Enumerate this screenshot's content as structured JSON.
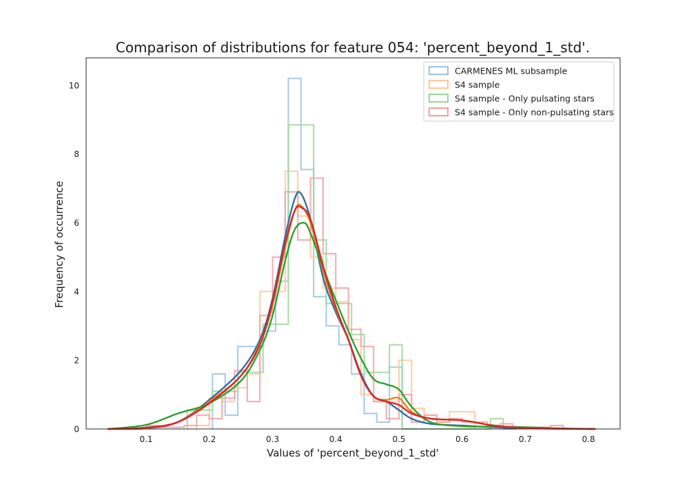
{
  "chart_data": {
    "type": "line",
    "title": "Comparison of distributions for feature 054: 'percent_beyond_1_std'.",
    "xlabel": "Values of 'percent_beyond_1_std'",
    "ylabel": "Frequency of occurrence",
    "xlim": [
      0.005,
      0.85
    ],
    "ylim": [
      0,
      10.8
    ],
    "xticks": [
      0.1,
      0.2,
      0.3,
      0.4,
      0.5,
      0.6,
      0.7,
      0.8
    ],
    "yticks": [
      0,
      2,
      4,
      6,
      8,
      10
    ],
    "grid": false,
    "legend_position": "top-right",
    "series": [
      {
        "name": "CARMENES ML subsample",
        "color": "#2f6fa8",
        "hist_color": "#9ec5e0",
        "hist": {
          "edges": [
            0.205,
            0.225,
            0.245,
            0.265,
            0.285,
            0.305,
            0.325,
            0.345,
            0.365,
            0.385,
            0.405,
            0.425,
            0.445,
            0.465,
            0.485,
            0.505,
            0.525
          ],
          "counts": [
            1.6,
            0.4,
            2.4,
            2.4,
            2.85,
            4.3,
            10.2,
            7.55,
            3.85,
            3.0,
            2.45,
            1.6,
            0.45,
            0.2,
            1.8,
            0.0
          ]
        },
        "kde": {
          "x": [
            0.04,
            0.1,
            0.15,
            0.2,
            0.25,
            0.28,
            0.3,
            0.32,
            0.335,
            0.345,
            0.36,
            0.38,
            0.4,
            0.42,
            0.44,
            0.46,
            0.48,
            0.5,
            0.52,
            0.55,
            0.6,
            0.65,
            0.7,
            0.75,
            0.81
          ],
          "y": [
            0.0,
            0.02,
            0.2,
            0.85,
            1.7,
            2.6,
            3.8,
            5.6,
            6.7,
            6.85,
            6.1,
            4.4,
            3.4,
            2.6,
            1.6,
            0.95,
            0.8,
            0.55,
            0.3,
            0.15,
            0.1,
            0.05,
            0.02,
            0.01,
            0.0
          ]
        }
      },
      {
        "name": "S4 sample",
        "color": "#f07f1f",
        "hist_color": "#ffc89a",
        "hist": {
          "edges": [
            0.18,
            0.2,
            0.22,
            0.24,
            0.26,
            0.28,
            0.3,
            0.32,
            0.34,
            0.36,
            0.38,
            0.4,
            0.42,
            0.44,
            0.46,
            0.48,
            0.5,
            0.52,
            0.54,
            0.56,
            0.58,
            0.6,
            0.62
          ],
          "counts": [
            0.1,
            0.9,
            0.8,
            1.2,
            1.6,
            4.0,
            4.0,
            7.5,
            6.2,
            5.0,
            4.1,
            3.7,
            2.6,
            1.0,
            0.8,
            0.8,
            2.0,
            0.6,
            0.4,
            0.2,
            0.5,
            0.5
          ]
        },
        "kde": {
          "x": [
            0.04,
            0.1,
            0.15,
            0.2,
            0.25,
            0.28,
            0.3,
            0.32,
            0.335,
            0.345,
            0.36,
            0.38,
            0.4,
            0.42,
            0.44,
            0.46,
            0.48,
            0.5,
            0.52,
            0.55,
            0.6,
            0.65,
            0.7,
            0.75,
            0.81
          ],
          "y": [
            0.0,
            0.03,
            0.2,
            0.8,
            1.55,
            2.5,
            3.6,
            5.3,
            6.35,
            6.5,
            6.0,
            4.6,
            3.5,
            2.6,
            1.55,
            0.95,
            0.85,
            0.9,
            0.5,
            0.3,
            0.25,
            0.1,
            0.03,
            0.01,
            0.0
          ]
        }
      },
      {
        "name": "S4 sample - Only pulsating stars",
        "color": "#2ca02c",
        "hist_color": "#9fd79b",
        "hist": {
          "edges": [
            0.165,
            0.185,
            0.205,
            0.225,
            0.245,
            0.265,
            0.285,
            0.305,
            0.325,
            0.345,
            0.365,
            0.385,
            0.405,
            0.425,
            0.445,
            0.465,
            0.485,
            0.505,
            0.525,
            0.545,
            0.565,
            0.585,
            0.605,
            0.625,
            0.645,
            0.665,
            0.685
          ],
          "counts": [
            0.55,
            0.55,
            1.1,
            1.1,
            1.65,
            1.65,
            3.05,
            3.05,
            8.85,
            8.85,
            5.5,
            3.65,
            3.65,
            2.75,
            1.65,
            1.65,
            2.45,
            0.0,
            0.0,
            0.0,
            0.0,
            0.0,
            0.0,
            0.0,
            0.3,
            0.0
          ]
        },
        "kde": {
          "x": [
            0.04,
            0.1,
            0.15,
            0.2,
            0.25,
            0.28,
            0.3,
            0.32,
            0.335,
            0.35,
            0.36,
            0.38,
            0.4,
            0.42,
            0.44,
            0.46,
            0.48,
            0.5,
            0.52,
            0.55,
            0.6,
            0.65,
            0.7,
            0.75,
            0.81
          ],
          "y": [
            0.0,
            0.12,
            0.45,
            0.75,
            1.4,
            2.3,
            3.3,
            4.9,
            5.8,
            6.0,
            5.7,
            4.7,
            3.75,
            2.85,
            2.05,
            1.45,
            1.3,
            1.15,
            0.65,
            0.2,
            0.08,
            0.07,
            0.05,
            0.02,
            0.0
          ]
        }
      },
      {
        "name": "S4 sample - Only non-pulsating stars",
        "color": "#d62728",
        "hist_color": "#f2a2a3",
        "hist": {
          "edges": [
            0.1,
            0.12,
            0.14,
            0.16,
            0.18,
            0.2,
            0.22,
            0.24,
            0.26,
            0.28,
            0.3,
            0.32,
            0.34,
            0.36,
            0.38,
            0.4,
            0.42,
            0.44,
            0.46,
            0.48,
            0.5,
            0.52,
            0.54,
            0.56,
            0.58,
            0.6,
            0.62,
            0.64,
            0.66,
            0.68,
            0.7,
            0.72,
            0.74,
            0.76
          ],
          "counts": [
            0.1,
            0.05,
            0.05,
            0.1,
            0.4,
            0.3,
            0.9,
            1.7,
            0.8,
            3.3,
            5.0,
            6.9,
            5.5,
            7.3,
            5.1,
            4.1,
            2.9,
            2.4,
            0.8,
            0.3,
            1.0,
            0.2,
            0.4,
            0.2,
            0.3,
            0.2,
            0.2,
            0.1,
            0.15,
            0.05,
            0.05,
            0.05,
            0.1
          ]
        },
        "kde": {
          "x": [
            0.04,
            0.1,
            0.15,
            0.2,
            0.25,
            0.28,
            0.3,
            0.32,
            0.335,
            0.345,
            0.36,
            0.38,
            0.4,
            0.42,
            0.44,
            0.46,
            0.48,
            0.5,
            0.52,
            0.55,
            0.6,
            0.65,
            0.7,
            0.75,
            0.81
          ],
          "y": [
            0.0,
            0.04,
            0.2,
            0.75,
            1.55,
            2.45,
            3.7,
            5.4,
            6.35,
            6.45,
            6.1,
            4.75,
            3.55,
            2.6,
            1.55,
            0.95,
            0.8,
            0.7,
            0.45,
            0.3,
            0.25,
            0.1,
            0.03,
            0.01,
            0.0
          ]
        }
      }
    ]
  }
}
